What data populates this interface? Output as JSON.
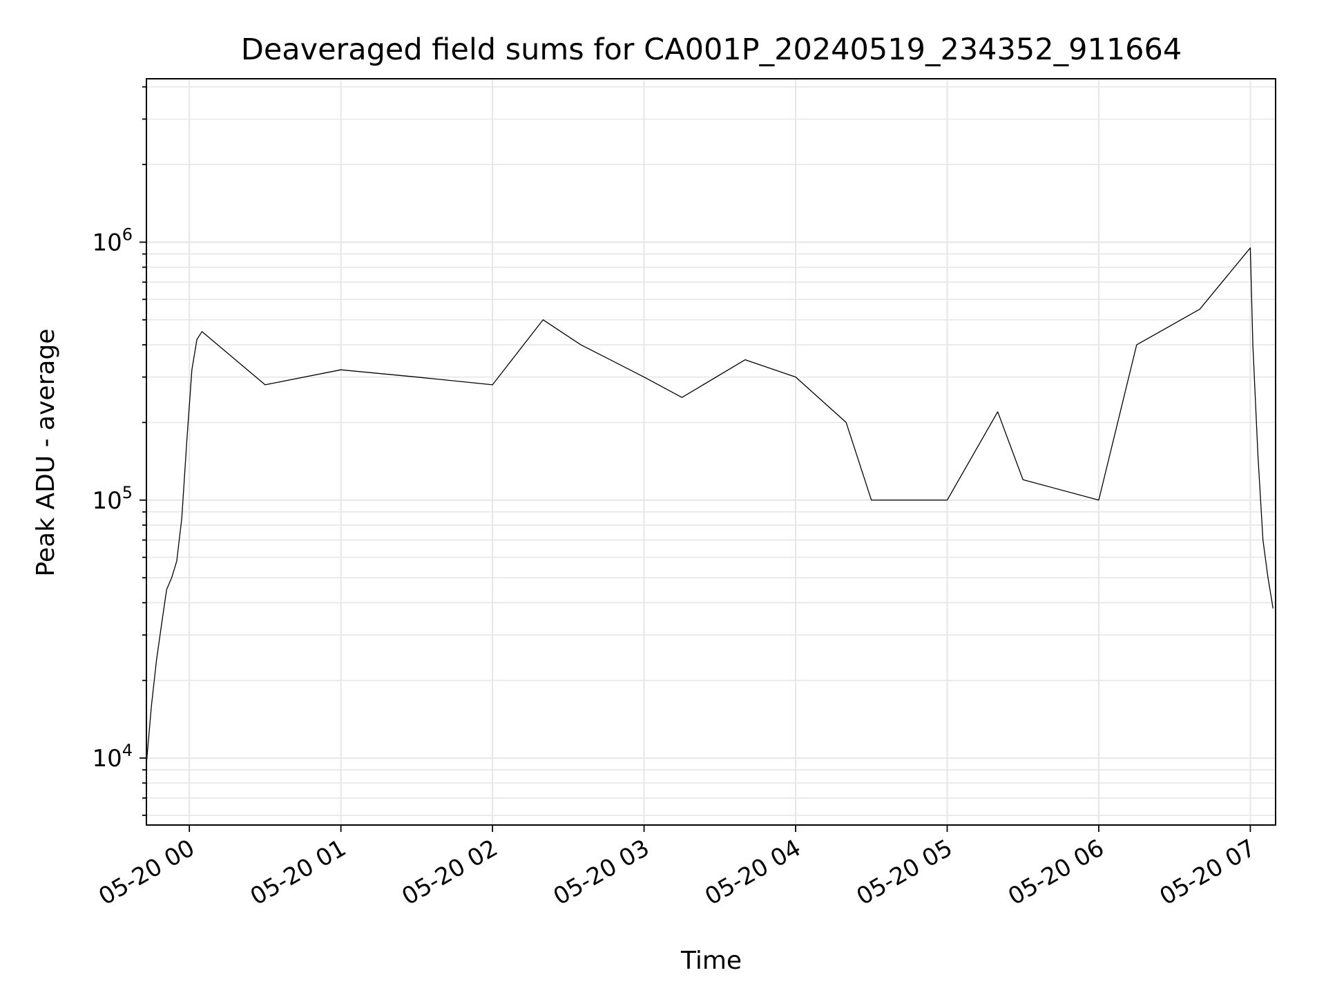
{
  "chart_data": {
    "type": "line",
    "title": "Deaveraged field sums for CA001P_20240519_234352_911664",
    "xlabel": "Time",
    "ylabel": "Peak ADU - average",
    "y_scale": "log",
    "ylim": [
      5500,
      4300000
    ],
    "xlim": [
      "2024-05-19 23:43",
      "2024-05-20 07:10"
    ],
    "grid": true,
    "line_color": "#000000",
    "grid_color": "#e6e6e6",
    "x_ticks": [
      {
        "value": "2024-05-20 00:00",
        "label": "05-20 00"
      },
      {
        "value": "2024-05-20 01:00",
        "label": "05-20 01"
      },
      {
        "value": "2024-05-20 02:00",
        "label": "05-20 02"
      },
      {
        "value": "2024-05-20 03:00",
        "label": "05-20 03"
      },
      {
        "value": "2024-05-20 04:00",
        "label": "05-20 04"
      },
      {
        "value": "2024-05-20 05:00",
        "label": "05-20 05"
      },
      {
        "value": "2024-05-20 06:00",
        "label": "05-20 06"
      },
      {
        "value": "2024-05-20 07:00",
        "label": "05-20 07"
      }
    ],
    "y_ticks": [
      {
        "value": 10000,
        "base": "10",
        "exp": "4"
      },
      {
        "value": 100000,
        "base": "10",
        "exp": "5"
      },
      {
        "value": 1000000,
        "base": "10",
        "exp": "6"
      }
    ],
    "series": [
      {
        "points": [
          [
            "2024-05-19 23:43",
            9500
          ],
          [
            "2024-05-19 23:45",
            16000
          ],
          [
            "2024-05-19 23:47",
            24000
          ],
          [
            "2024-05-19 23:49",
            33000
          ],
          [
            "2024-05-19 23:51",
            45000
          ],
          [
            "2024-05-19 23:53",
            50000
          ],
          [
            "2024-05-19 23:55",
            58000
          ],
          [
            "2024-05-19 23:57",
            85000
          ],
          [
            "2024-05-19 23:59",
            170000
          ],
          [
            "2024-05-20 00:01",
            320000
          ],
          [
            "2024-05-20 00:03",
            420000
          ],
          [
            "2024-05-20 00:05",
            450000
          ],
          [
            "2024-05-20 00:30",
            280000
          ],
          [
            "2024-05-20 01:00",
            320000
          ],
          [
            "2024-05-20 01:30",
            300000
          ],
          [
            "2024-05-20 02:00",
            280000
          ],
          [
            "2024-05-20 02:20",
            500000
          ],
          [
            "2024-05-20 02:35",
            400000
          ],
          [
            "2024-05-20 03:00",
            300000
          ],
          [
            "2024-05-20 03:15",
            250000
          ],
          [
            "2024-05-20 03:40",
            350000
          ],
          [
            "2024-05-20 04:00",
            300000
          ],
          [
            "2024-05-20 04:20",
            200000
          ],
          [
            "2024-05-20 04:30",
            100000
          ],
          [
            "2024-05-20 05:00",
            100000
          ],
          [
            "2024-05-20 05:20",
            220000
          ],
          [
            "2024-05-20 05:30",
            120000
          ],
          [
            "2024-05-20 06:00",
            100000
          ],
          [
            "2024-05-20 06:15",
            400000
          ],
          [
            "2024-05-20 06:40",
            550000
          ],
          [
            "2024-05-20 06:58",
            900000
          ],
          [
            "2024-05-20 07:00",
            950000
          ],
          [
            "2024-05-20 07:01",
            400000
          ],
          [
            "2024-05-20 07:03",
            150000
          ],
          [
            "2024-05-20 07:05",
            70000
          ],
          [
            "2024-05-20 07:07",
            50000
          ],
          [
            "2024-05-20 07:09",
            38000
          ]
        ]
      }
    ]
  }
}
